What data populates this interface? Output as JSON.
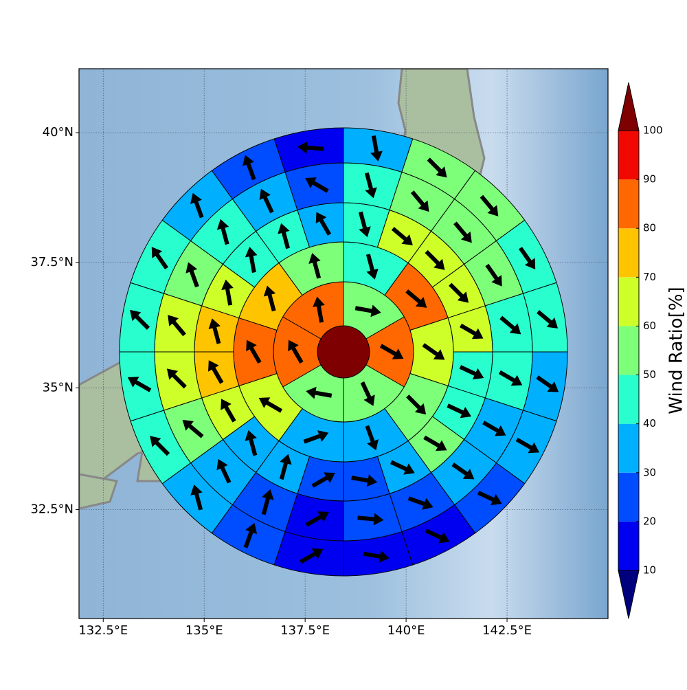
{
  "chart_data": {
    "type": "polar-grid-map",
    "xlim": [
      131.9,
      145.0
    ],
    "ylim": [
      30.2,
      41.2
    ],
    "xticks": [
      {
        "value": 132.5,
        "label": "132.5°E"
      },
      {
        "value": 135,
        "label": "135°E"
      },
      {
        "value": 137.5,
        "label": "137.5°E"
      },
      {
        "value": 140,
        "label": "140°E"
      },
      {
        "value": 142.5,
        "label": "142.5°E"
      }
    ],
    "yticks": [
      {
        "value": 32.5,
        "label": "32.5°N"
      },
      {
        "value": 35,
        "label": "35°N"
      },
      {
        "value": 37.5,
        "label": "37.5°N"
      },
      {
        "value": 40,
        "label": "40°N"
      }
    ],
    "grid": true,
    "rings": [
      {
        "values": [
          100
        ]
      },
      {
        "values": [
          55,
          85,
          55,
          55,
          85,
          85
        ],
        "directions": [
          100,
          120,
          155,
          280,
          330,
          350
        ]
      },
      {
        "values": [
          45,
          85,
          65,
          55,
          35,
          35,
          65,
          85,
          75,
          55
        ],
        "directions": [
          165,
          130,
          125,
          135,
          160,
          70,
          300,
          330,
          345,
          345
        ]
      },
      {
        "values": [
          45,
          65,
          65,
          65,
          65,
          45,
          45,
          55,
          35,
          25,
          25,
          35,
          35,
          65,
          75,
          75,
          65,
          45,
          45,
          35
        ],
        "directions": [
          165,
          130,
          135,
          135,
          120,
          115,
          115,
          120,
          115,
          100,
          60,
          15,
          345,
          330,
          330,
          345,
          350,
          350,
          345,
          330
        ]
      },
      {
        "values": [
          45,
          55,
          55,
          55,
          45,
          45,
          35,
          35,
          25,
          25,
          15,
          25,
          35,
          55,
          65,
          65,
          55,
          45,
          35,
          25
        ],
        "directions": [
          165,
          140,
          140,
          145,
          130,
          120,
          120,
          125,
          110,
          95,
          60,
          15,
          335,
          310,
          315,
          320,
          340,
          345,
          335,
          300
        ]
      },
      {
        "values": [
          35,
          55,
          55,
          45,
          45,
          35,
          35,
          25,
          15,
          15,
          15,
          25,
          35,
          45,
          45,
          45,
          45,
          35,
          25,
          15
        ],
        "directions": [
          170,
          135,
          140,
          145,
          130,
          125,
          120,
          115,
          115,
          100,
          60,
          20,
          345,
          315,
          300,
          315,
          325,
          340,
          340,
          275
        ]
      }
    ],
    "colorbar": {
      "label": "Wind Ratio[%]",
      "levels": [
        10,
        20,
        30,
        40,
        50,
        60,
        70,
        80,
        90,
        100
      ],
      "colors": [
        "#00007f",
        "#0000f1",
        "#004cff",
        "#00b0ff",
        "#29ffce",
        "#7dff7a",
        "#ceff29",
        "#ffc400",
        "#ff6800",
        "#f10800",
        "#7f0000"
      ]
    }
  }
}
